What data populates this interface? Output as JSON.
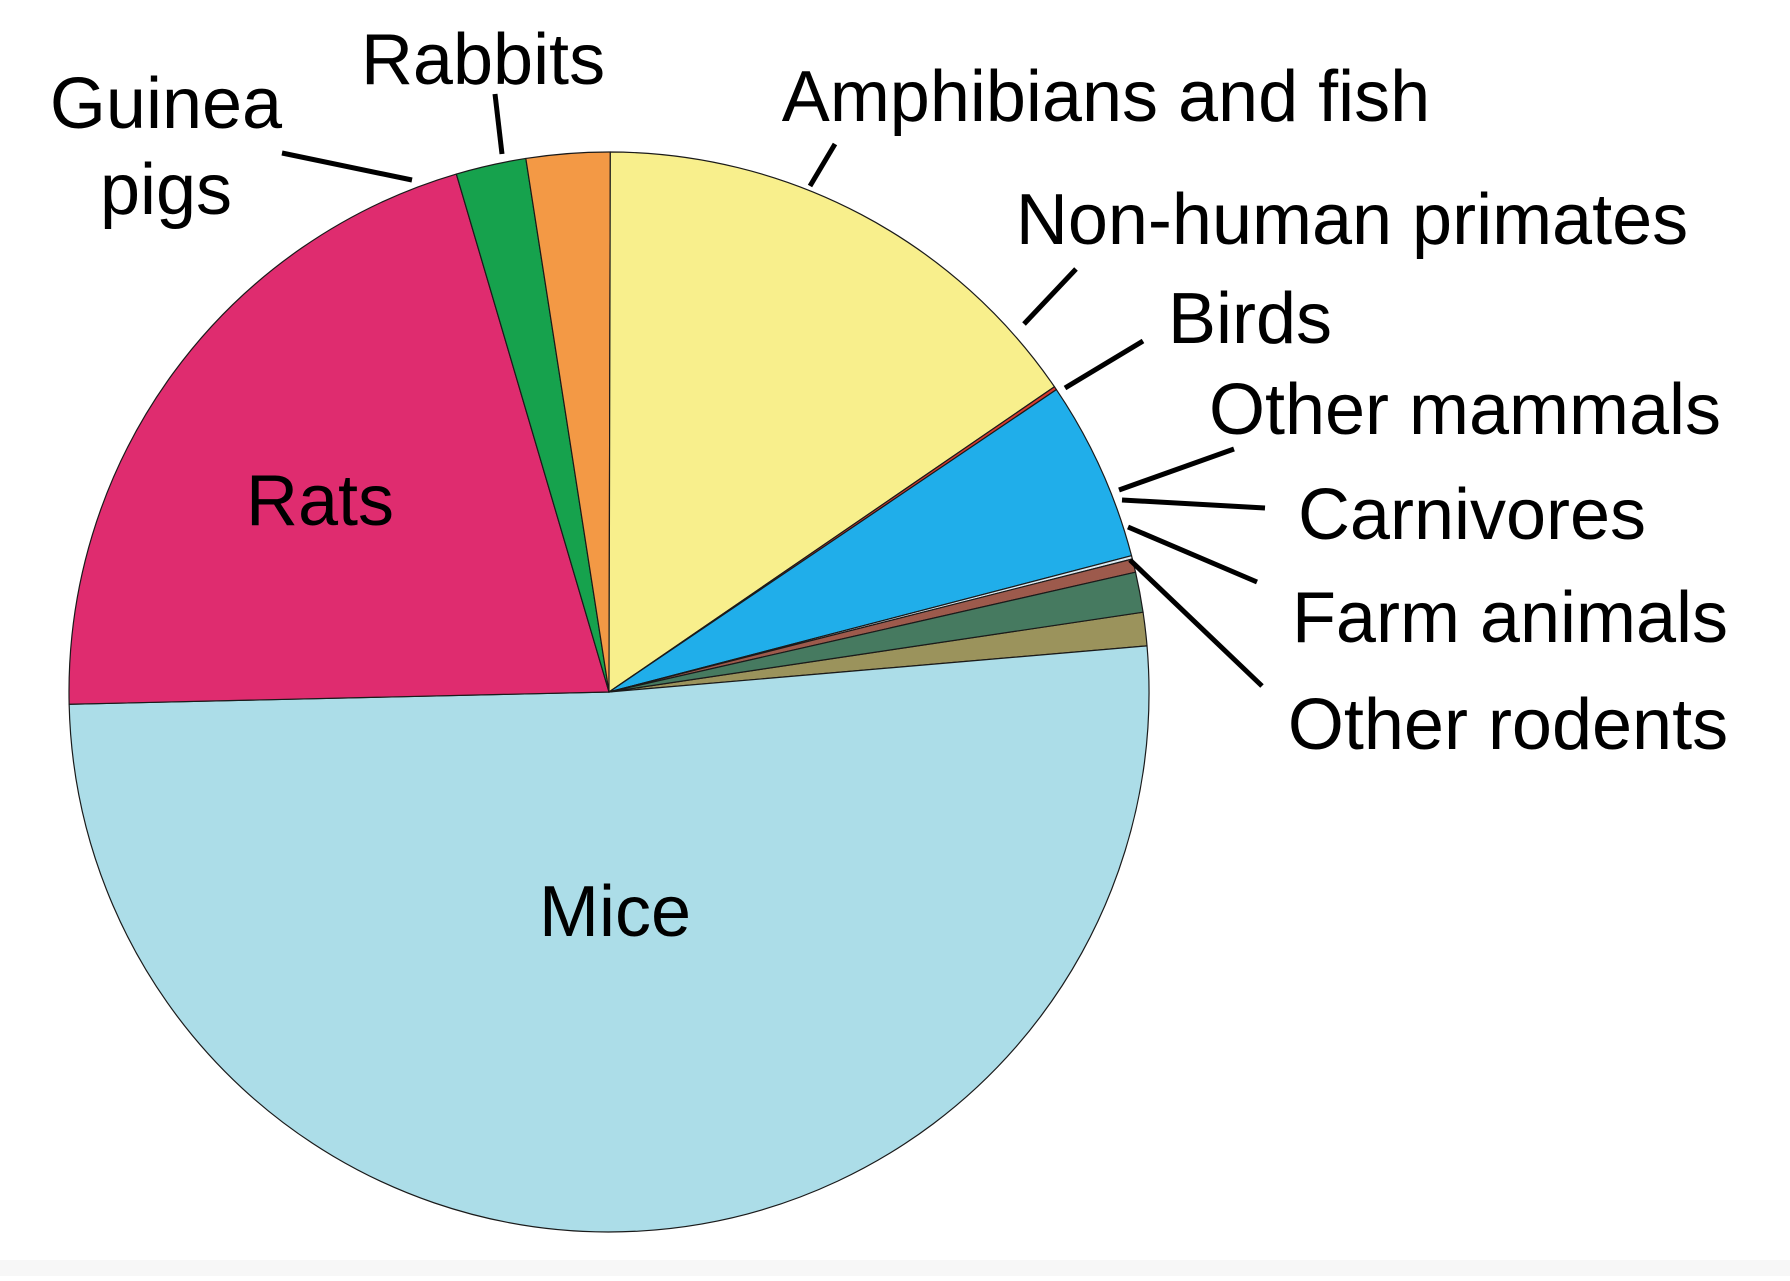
{
  "chart_data": {
    "type": "pie",
    "title": "",
    "start_angle_deg": 0,
    "direction": "clockwise",
    "slices": [
      {
        "key": "other-rodents",
        "label": "Other rodents",
        "value": 1.0,
        "color": "#9b935c",
        "label_mode": "leader"
      },
      {
        "key": "mice",
        "label": "Mice",
        "value": 51.0,
        "color": "#acdde8",
        "label_mode": "inside"
      },
      {
        "key": "rats",
        "label": "Rats",
        "value": 20.8,
        "color": "#df2c6f",
        "label_mode": "inside"
      },
      {
        "key": "guinea-pigs",
        "label": "Guinea\npigs",
        "value": 2.1,
        "color": "#16a24d",
        "label_mode": "leader"
      },
      {
        "key": "rabbits",
        "label": "Rabbits",
        "value": 2.5,
        "color": "#f39945",
        "label_mode": "leader"
      },
      {
        "key": "amphibians-fish",
        "label": "Amphibians and fish",
        "value": 15.4,
        "color": "#f8ef8c",
        "label_mode": "leader"
      },
      {
        "key": "primates",
        "label": "Non-human primates",
        "value": 0.1,
        "color": "#d73a2f",
        "label_mode": "leader"
      },
      {
        "key": "birds",
        "label": "Birds",
        "value": 5.4,
        "color": "#20aeea",
        "label_mode": "leader"
      },
      {
        "key": "other-mammals",
        "label": "Other mammals",
        "value": 0.1,
        "color": "#dceaf2",
        "label_mode": "leader"
      },
      {
        "key": "carnivores",
        "label": "Carnivores",
        "value": 0.4,
        "color": "#9d5a4c",
        "label_mode": "leader"
      },
      {
        "key": "farm-animals",
        "label": "Farm animals",
        "value": 1.2,
        "color": "#467a60",
        "label_mode": "leader"
      }
    ]
  }
}
